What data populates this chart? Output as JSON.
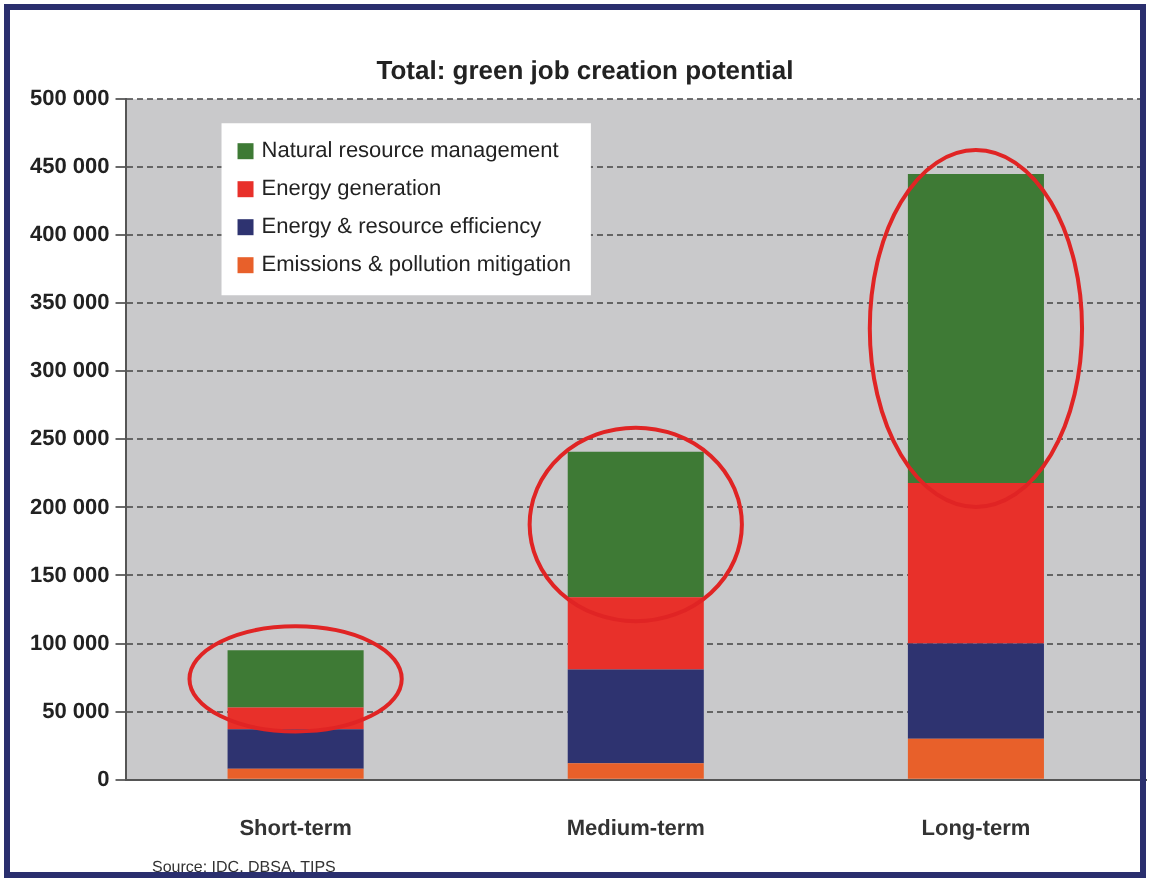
{
  "chart_data": {
    "type": "bar",
    "stacked": true,
    "title": "Total: green job creation potential",
    "categories": [
      "Short-term",
      "Medium-term",
      "Long-term"
    ],
    "series": [
      {
        "name": "Emissions & pollution mitigation",
        "color": "#e8602a",
        "values": [
          8000,
          12000,
          30000
        ]
      },
      {
        "name": "Energy & resource efficiency",
        "color": "#2e3370",
        "values": [
          29000,
          69000,
          70000
        ]
      },
      {
        "name": "Energy generation",
        "color": "#e8302a",
        "values": [
          16000,
          53000,
          118000
        ]
      },
      {
        "name": "Natural resource management",
        "color": "#3e7a35",
        "values": [
          42000,
          107000,
          227000
        ]
      }
    ],
    "ylim": [
      0,
      500000
    ],
    "yticks": [
      {
        "value": 0,
        "label": "0"
      },
      {
        "value": 50000,
        "label": "50 000"
      },
      {
        "value": 100000,
        "label": "100 000"
      },
      {
        "value": 150000,
        "label": "150 000"
      },
      {
        "value": 200000,
        "label": "200 000"
      },
      {
        "value": 250000,
        "label": "250 000"
      },
      {
        "value": 300000,
        "label": "300 000"
      },
      {
        "value": 350000,
        "label": "350 000"
      },
      {
        "value": 400000,
        "label": "400 000"
      },
      {
        "value": 450000,
        "label": "450 000"
      },
      {
        "value": 500000,
        "label": "500 000"
      }
    ],
    "grid": "y",
    "legend": "top left",
    "annotations": [
      "Source: IDC, DBSA, TIPS"
    ]
  }
}
